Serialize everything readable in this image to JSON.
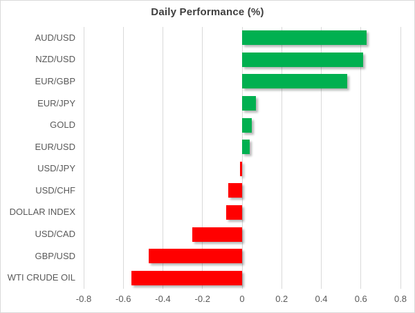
{
  "title": "Daily Performance (%)",
  "chart_data": {
    "type": "bar",
    "orientation": "horizontal",
    "title": "Daily Performance (%)",
    "categories": [
      "AUD/USD",
      "NZD/USD",
      "EUR/GBP",
      "EUR/JPY",
      "GOLD",
      "EUR/USD",
      "USD/JPY",
      "USD/CHF",
      "DOLLAR INDEX",
      "USD/CAD",
      "GBP/USD",
      "WTI CRUDE OIL"
    ],
    "values": [
      0.63,
      0.61,
      0.53,
      0.07,
      0.05,
      0.04,
      -0.01,
      -0.07,
      -0.08,
      -0.25,
      -0.47,
      -0.56
    ],
    "xlim": [
      -0.8,
      0.8
    ],
    "x_ticks": [
      -0.8,
      -0.6,
      -0.4,
      -0.2,
      0,
      0.2,
      0.4,
      0.6,
      0.8
    ],
    "x_tick_labels": [
      "-0.8",
      "-0.6",
      "-0.4",
      "-0.2",
      "0",
      "0.2",
      "0.4",
      "0.6",
      "0.8"
    ],
    "xlabel": "",
    "ylabel": "",
    "grid": true,
    "legend": false,
    "positive_color": "#00B050",
    "negative_color": "#FF0000",
    "gridline_color": "#D9D9D9",
    "label_color": "#595959",
    "title_color": "#3F3F3F"
  }
}
